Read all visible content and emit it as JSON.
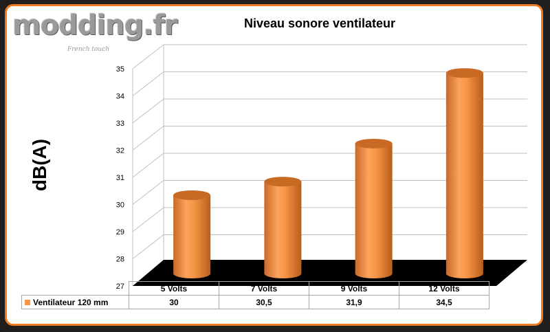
{
  "branding": {
    "logo": "modding.fr",
    "tagline": "French touch"
  },
  "colors": {
    "bar": "#f79646",
    "bar_dark": "#c86a24",
    "floor": "#000000",
    "frame_border": "#ef7a1f"
  },
  "chart_data": {
    "type": "bar",
    "title": "Niveau sonore ventilateur",
    "ylabel": "dB(A)",
    "xlabel": "",
    "categories": [
      "5 Volts",
      "7 Volts",
      "9 Volts",
      "12 Volts"
    ],
    "series": [
      {
        "name": "Ventilateur 120 mm",
        "values": [
          30,
          30.5,
          31.9,
          34.5
        ]
      }
    ],
    "data_labels": [
      "30",
      "30,5",
      "31,9",
      "34,5"
    ],
    "ylim": [
      27,
      35
    ],
    "yticks": [
      "27",
      "28",
      "29",
      "30",
      "31",
      "32",
      "33",
      "34",
      "35"
    ],
    "grid": true,
    "legend": "data-table-bottom",
    "style": "3d-cylinder"
  }
}
